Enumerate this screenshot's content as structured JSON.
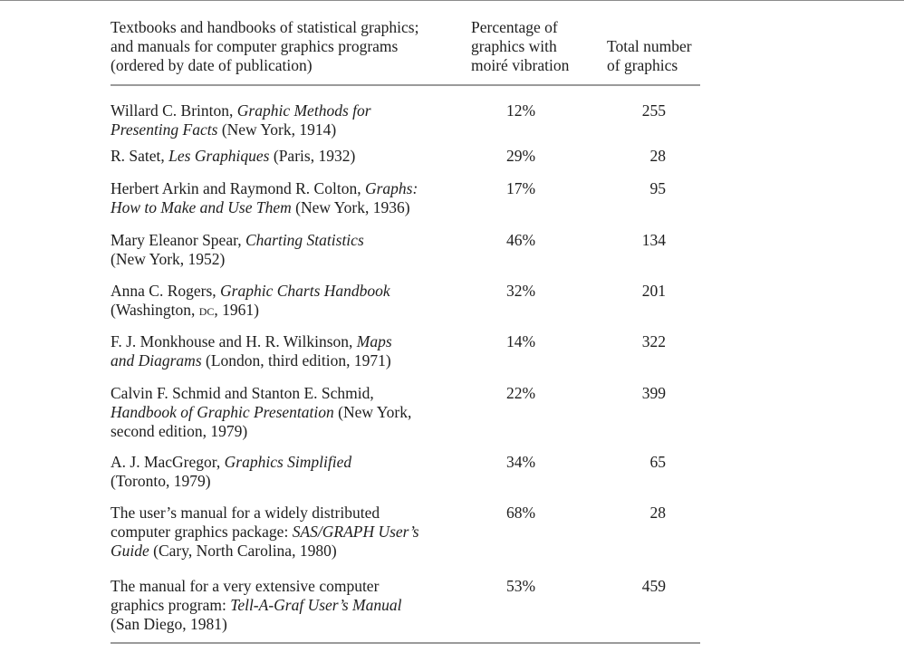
{
  "header": {
    "col1_line1": "Textbooks and handbooks of statistical graphics;",
    "col1_line2": "and manuals for computer graphics programs",
    "col1_line3": "(ordered by date of publication)",
    "col2_line1": "Percentage of",
    "col2_line2": "graphics with",
    "col2_line3": "moiré vibration",
    "col3_line1": "Total number",
    "col3_line2": "of graphics"
  },
  "rows": [
    {
      "a": "Willard C. Brinton, ",
      "b": "Graphic Methods for",
      "c": "Presenting Facts",
      "d": " (New York, 1914)",
      "pct": "12%",
      "total": "255"
    },
    {
      "a": "R. Satet, ",
      "b": "Les Graphiques",
      "c": " (Paris, 1932)",
      "pct": "29%",
      "total": "28"
    },
    {
      "a": "Herbert Arkin and Raymond R. Colton, ",
      "b": "Graphs:",
      "c": "How to Make and Use Them",
      "d": " (New York, 1936)",
      "pct": "17%",
      "total": "95"
    },
    {
      "a": "Mary Eleanor Spear, ",
      "b": "Charting Statistics",
      "c": "(New York, 1952)",
      "pct": "46%",
      "total": "134"
    },
    {
      "a": "Anna C. Rogers, ",
      "b": "Graphic Charts Handbook",
      "c": "(Washington, ",
      "d": "DC",
      "e": ", 1961)",
      "pct": "32%",
      "total": "201"
    },
    {
      "a": "F. J. Monkhouse and H. R. Wilkinson, ",
      "b": "Maps",
      "c": "and Diagrams",
      "d": " (London, third edition, 1971)",
      "pct": "14%",
      "total": "322"
    },
    {
      "a": "Calvin F. Schmid and Stanton E. Schmid,",
      "b": "Handbook of Graphic Presentation",
      "c": " (New York,",
      "d": "second edition, 1979)",
      "pct": "22%",
      "total": "399"
    },
    {
      "a": "A. J. MacGregor, ",
      "b": "Graphics Simplified",
      "c": "(Toronto, 1979)",
      "pct": "34%",
      "total": "65"
    },
    {
      "a": "The user’s manual for a widely distributed",
      "b": "computer graphics package: ",
      "c": "SAS/GRAPH User’s",
      "d": "Guide",
      "e": " (Cary, North Carolina, 1980)",
      "pct": "68%",
      "total": "28"
    },
    {
      "a": "The manual for a very extensive computer",
      "b": "graphics program: ",
      "c": "Tell-A-Graf User’s Manual",
      "d": "(San Diego, 1981)",
      "pct": "53%",
      "total": "459"
    }
  ]
}
